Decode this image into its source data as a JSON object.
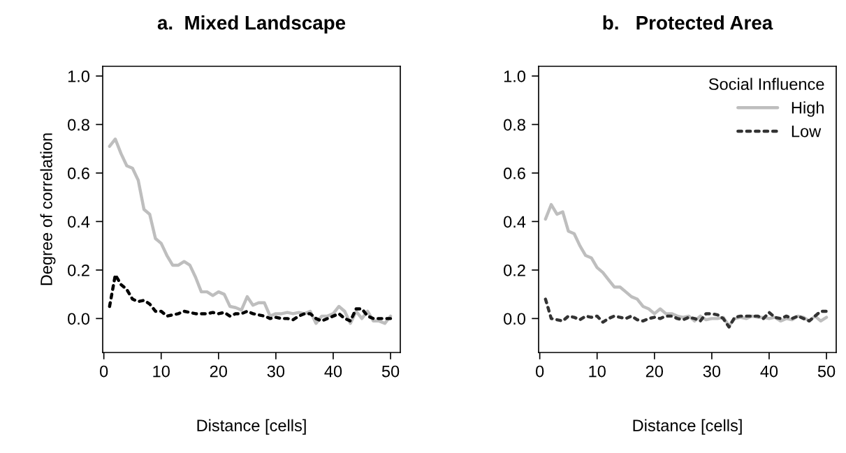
{
  "chart_data": [
    {
      "type": "line",
      "title": "a.  Mixed Landscape",
      "xlabel": "Distance [cells]",
      "ylabel": "Degree of correlation",
      "xlim": [
        -0.2,
        51.7
      ],
      "ylim": [
        -0.14,
        1.04
      ],
      "xticks": [
        0,
        10,
        20,
        30,
        40,
        50
      ],
      "yticks": [
        {
          "value": 0,
          "label": "0.0"
        },
        {
          "value": 0.2,
          "label": "0.2"
        },
        {
          "value": 0.4,
          "label": "0.4"
        },
        {
          "value": 0.6,
          "label": "0.6"
        },
        {
          "value": 0.8,
          "label": "0.8"
        },
        {
          "value": 1,
          "label": "1.0"
        }
      ],
      "grid": false,
      "legend": false,
      "x": [
        1,
        2,
        3,
        4,
        5,
        6,
        7,
        8,
        9,
        10,
        11,
        12,
        13,
        14,
        15,
        16,
        17,
        18,
        19,
        20,
        21,
        22,
        23,
        24,
        25,
        26,
        27,
        28,
        29,
        30,
        31,
        32,
        33,
        34,
        35,
        36,
        37,
        38,
        39,
        40,
        41,
        42,
        43,
        44,
        45,
        46,
        47,
        48,
        49,
        50
      ],
      "series": [
        {
          "color": "#bebebe",
          "line_style": "solid",
          "values": [
            0.71,
            0.74,
            0.68,
            0.63,
            0.62,
            0.57,
            0.45,
            0.43,
            0.33,
            0.31,
            0.26,
            0.22,
            0.22,
            0.235,
            0.22,
            0.17,
            0.11,
            0.11,
            0.095,
            0.11,
            0.1,
            0.05,
            0.045,
            0.035,
            0.09,
            0.055,
            0.065,
            0.065,
            0.01,
            0.02,
            0.02,
            0.025,
            0.02,
            0.025,
            0.02,
            0.03,
            -0.02,
            0.01,
            0.01,
            0.02,
            0.05,
            0.03,
            -0.02,
            0.03,
            0.0,
            0.03,
            -0.01,
            -0.01,
            -0.02,
            0.01
          ]
        },
        {
          "color": "#000000",
          "line_style": "dotted",
          "values": [
            0.05,
            0.18,
            0.14,
            0.12,
            0.08,
            0.07,
            0.075,
            0.06,
            0.03,
            0.03,
            0.01,
            0.015,
            0.02,
            0.03,
            0.025,
            0.02,
            0.02,
            0.02,
            0.025,
            0.02,
            0.025,
            0.01,
            0.02,
            0.02,
            0.03,
            0.02,
            0.015,
            0.01,
            0.0,
            0.005,
            0.0,
            0.0,
            -0.005,
            0.01,
            0.02,
            0.02,
            0.0,
            -0.01,
            0.0,
            0.01,
            0.02,
            0.0,
            -0.01,
            0.04,
            0.04,
            0.01,
            0.0,
            0.0,
            0.0,
            0.0
          ]
        }
      ]
    },
    {
      "type": "line",
      "title": "b.   Protected Area",
      "xlabel": "Distance [cells]",
      "legend_title": "Social Influence",
      "xlim": [
        -0.2,
        51.7
      ],
      "ylim": [
        -0.14,
        1.04
      ],
      "xticks": [
        0,
        10,
        20,
        30,
        40,
        50
      ],
      "yticks": [
        {
          "value": 0,
          "label": "0.0"
        },
        {
          "value": 0.2,
          "label": "0.2"
        },
        {
          "value": 0.4,
          "label": "0.4"
        },
        {
          "value": 0.6,
          "label": "0.6"
        },
        {
          "value": 0.8,
          "label": "0.8"
        },
        {
          "value": 1,
          "label": "1.0"
        }
      ],
      "grid": false,
      "legend": "top right",
      "x": [
        1,
        2,
        3,
        4,
        5,
        6,
        7,
        8,
        9,
        10,
        11,
        12,
        13,
        14,
        15,
        16,
        17,
        18,
        19,
        20,
        21,
        22,
        23,
        24,
        25,
        26,
        27,
        28,
        29,
        30,
        31,
        32,
        33,
        34,
        35,
        36,
        37,
        38,
        39,
        40,
        41,
        42,
        43,
        44,
        45,
        46,
        47,
        48,
        49,
        50
      ],
      "series": [
        {
          "name": "High",
          "color": "#bebebe",
          "line_style": "solid",
          "values": [
            0.41,
            0.47,
            0.43,
            0.44,
            0.36,
            0.35,
            0.3,
            0.26,
            0.25,
            0.21,
            0.19,
            0.16,
            0.13,
            0.13,
            0.11,
            0.09,
            0.08,
            0.05,
            0.04,
            0.02,
            0.04,
            0.02,
            0.02,
            0.01,
            0.005,
            0.01,
            -0.01,
            0.01,
            -0.005,
            0.0,
            0.0,
            0.005,
            -0.03,
            0.0,
            0.005,
            0.0,
            0.01,
            0.005,
            0.005,
            0.0,
            0.005,
            -0.01,
            0.0,
            -0.005,
            0.01,
            0.005,
            -0.01,
            0.01,
            -0.01,
            0.005
          ]
        },
        {
          "name": "Low",
          "color": "#333333",
          "line_style": "dotted",
          "values": [
            0.08,
            0.0,
            -0.005,
            -0.01,
            0.01,
            0.005,
            -0.005,
            0.01,
            0.005,
            0.01,
            -0.015,
            0.0,
            0.01,
            0.005,
            0.0,
            0.01,
            -0.005,
            -0.01,
            0.0,
            0.005,
            0.0,
            0.01,
            0.01,
            0.0,
            -0.005,
            0.005,
            0.0,
            -0.01,
            0.02,
            0.02,
            0.015,
            0.0,
            -0.035,
            0.005,
            0.01,
            0.01,
            0.01,
            0.01,
            0.0,
            0.025,
            0.005,
            0.0,
            0.01,
            0.0,
            0.01,
            0.0,
            -0.01,
            0.01,
            0.03,
            0.03
          ]
        }
      ]
    }
  ]
}
